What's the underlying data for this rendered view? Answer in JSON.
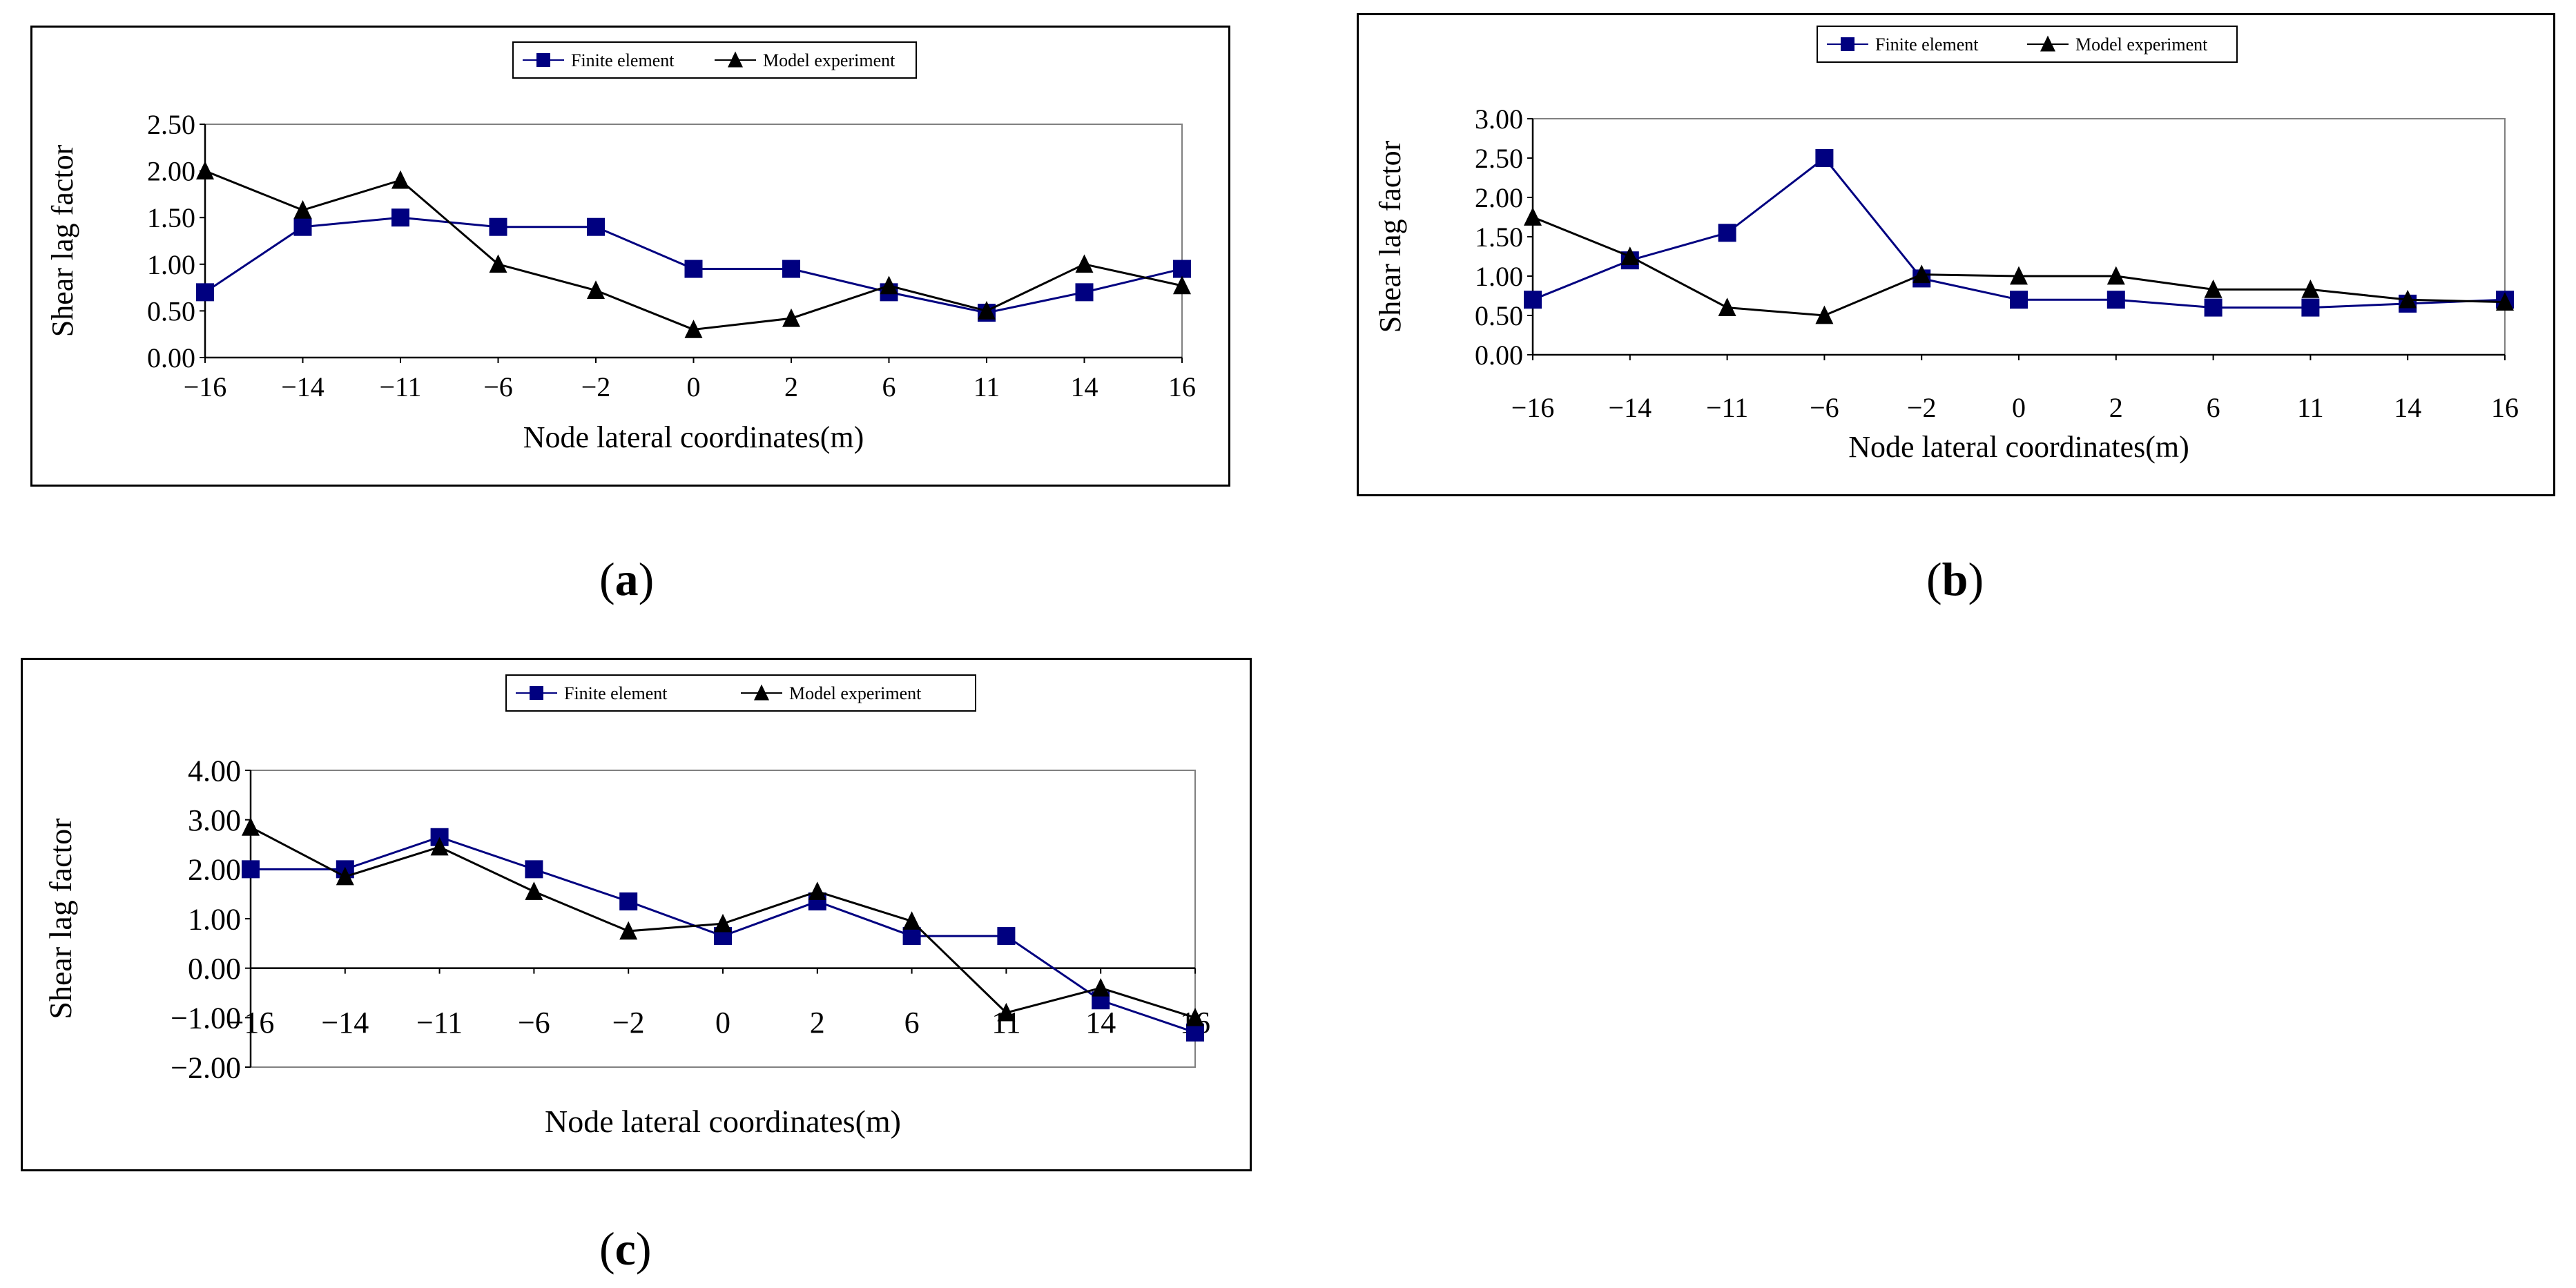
{
  "captions": [
    "a",
    "b",
    "c"
  ],
  "colors": {
    "finite": "#000080",
    "model": "#000000",
    "frame": "#000000",
    "plot_border": "#808080"
  },
  "legend_labels": {
    "finite": "Finite element",
    "model": "Model experiment"
  },
  "chart_data": [
    {
      "type": "line",
      "title": "",
      "xlabel": "Node lateral coordinates(m)",
      "ylabel": "Shear lag factor",
      "categories": [
        "−16",
        "−14",
        "−11",
        "−6",
        "−2",
        "0",
        "2",
        "6",
        "11",
        "14",
        "16"
      ],
      "yticks": [
        "0.00",
        "0.50",
        "1.00",
        "1.50",
        "2.00",
        "2.50"
      ],
      "ylim": [
        0,
        2.5
      ],
      "series": [
        {
          "name": "Finite element",
          "marker": "square",
          "values": [
            0.7,
            1.4,
            1.5,
            1.4,
            1.4,
            0.95,
            0.95,
            0.7,
            0.48,
            0.7,
            0.95
          ]
        },
        {
          "name": "Model experiment",
          "marker": "triangle",
          "values": [
            2.0,
            1.58,
            1.9,
            1.0,
            0.72,
            0.3,
            0.42,
            0.77,
            0.5,
            1.0,
            0.77
          ]
        }
      ]
    },
    {
      "type": "line",
      "title": "",
      "xlabel": "Node lateral coordinates(m)",
      "ylabel": "Shear lag factor",
      "categories": [
        "−16",
        "−14",
        "−11",
        "−6",
        "−2",
        "0",
        "2",
        "6",
        "11",
        "14",
        "16"
      ],
      "yticks": [
        "0.00",
        "0.50",
        "1.00",
        "1.50",
        "2.00",
        "2.50",
        "3.00"
      ],
      "ylim": [
        0,
        3.0
      ],
      "series": [
        {
          "name": "Finite element",
          "marker": "square",
          "values": [
            0.7,
            1.2,
            1.55,
            2.5,
            0.97,
            0.7,
            0.7,
            0.6,
            0.6,
            0.65,
            0.7
          ]
        },
        {
          "name": "Model experiment",
          "marker": "triangle",
          "values": [
            1.75,
            1.25,
            0.6,
            0.5,
            1.02,
            1.0,
            1.0,
            0.83,
            0.83,
            0.7,
            0.67
          ]
        }
      ]
    },
    {
      "type": "line",
      "title": "",
      "xlabel": "Node lateral coordinates(m)",
      "ylabel": "Shear lag factor",
      "categories": [
        "−16",
        "−14",
        "−11",
        "−6",
        "−2",
        "0",
        "2",
        "6",
        "11",
        "14",
        "16"
      ],
      "yticks": [
        "−2.00",
        "−1.00",
        "0.00",
        "1.00",
        "2.00",
        "3.00",
        "4.00"
      ],
      "ylim": [
        -2,
        4
      ],
      "series": [
        {
          "name": "Finite element",
          "marker": "square",
          "values": [
            2.0,
            2.0,
            2.65,
            2.0,
            1.35,
            0.65,
            1.35,
            0.65,
            0.65,
            -0.65,
            -1.3
          ]
        },
        {
          "name": "Model experiment",
          "marker": "triangle",
          "values": [
            2.85,
            1.85,
            2.45,
            1.55,
            0.75,
            0.9,
            1.55,
            0.95,
            -0.9,
            -0.4,
            -1.0
          ]
        }
      ]
    }
  ]
}
